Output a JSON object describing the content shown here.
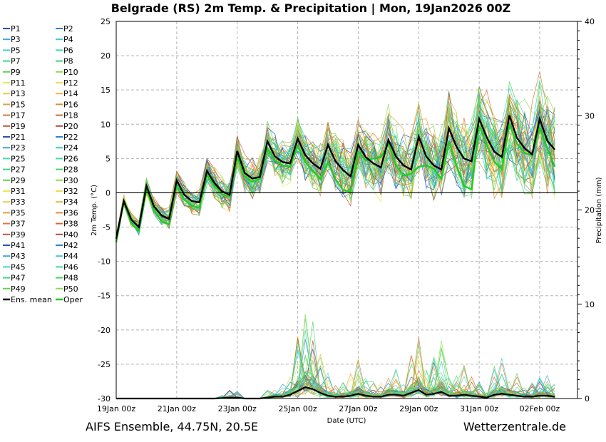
{
  "chart_data": {
    "type": "line",
    "title": "Belgrade  (RS)  2m Temp. & Precipitation | Mon, 19Jan2026 00Z",
    "xlabel": "Date (UTC)",
    "ylabel": "2m Temp. (°C)",
    "y2label": "Precipitation (mm)",
    "footer_left": "AIFS Ensemble, 44.75N, 20.5E",
    "footer_right": "Wetterzentrale.de",
    "ylim": [
      -30,
      25
    ],
    "y2lim": [
      0,
      40
    ],
    "yticks": [
      25,
      20,
      15,
      10,
      5,
      0,
      -5,
      -10,
      -15,
      -20,
      -25,
      -30
    ],
    "y2ticks": [
      40,
      30,
      20,
      10,
      0
    ],
    "x_hours_max": 366,
    "step_hours": 6,
    "xticks": [
      {
        "h": 0,
        "label": "19Jan 00z"
      },
      {
        "h": 48,
        "label": "21Jan 00z"
      },
      {
        "h": 96,
        "label": "23Jan 00z"
      },
      {
        "h": 144,
        "label": "25Jan 00z"
      },
      {
        "h": 192,
        "label": "27Jan 00z"
      },
      {
        "h": 240,
        "label": "29Jan 00z"
      },
      {
        "h": 288,
        "label": "31Jan 00z"
      },
      {
        "h": 336,
        "label": "02Feb 00z"
      }
    ],
    "ens_mean_temp": [
      -6.7,
      -1.2,
      -3.9,
      -5.0,
      1.0,
      -2.0,
      -3.3,
      -3.8,
      1.8,
      -0.3,
      -1.2,
      -1.4,
      3.2,
      1.4,
      0.2,
      -0.3,
      6.1,
      2.9,
      2.1,
      2.3,
      7.5,
      5.3,
      4.5,
      4.3,
      7.9,
      5.5,
      4.3,
      3.5,
      7.0,
      4.6,
      3.3,
      2.4,
      7.0,
      5.2,
      4.3,
      3.7,
      7.7,
      5.3,
      4.0,
      3.4,
      8.2,
      5.3,
      4.0,
      3.4,
      9.4,
      6.7,
      5.0,
      4.6,
      10.8,
      8.1,
      6.0,
      5.2,
      11.3,
      8.0,
      6.5,
      5.6,
      10.8,
      7.6,
      6.3
    ],
    "oper_temp": [
      -7.2,
      -1.3,
      -4.5,
      -5.6,
      0.5,
      -2.6,
      -4.2,
      -4.6,
      1.0,
      -1.0,
      -1.9,
      -2.2,
      2.6,
      1.0,
      -0.2,
      -0.6,
      5.2,
      2.4,
      1.6,
      2.0,
      6.5,
      4.7,
      4.0,
      3.8,
      6.8,
      4.5,
      3.2,
      2.0,
      4.5,
      2.0,
      0.4,
      0.2,
      6.0,
      4.7,
      5.0,
      5.2,
      7.2,
      4.0,
      2.5,
      2.8,
      3.8,
      4.0,
      3.5,
      2.0,
      7.5,
      4.0,
      1.0,
      0.5,
      9.8,
      7.0,
      4.5,
      3.5,
      10.0,
      7.2,
      5.8,
      5.5,
      9.5,
      6.5,
      3.8
    ],
    "ens_mean_precip": [
      0,
      0,
      0,
      0,
      0,
      0,
      0,
      0,
      0,
      0,
      0,
      0,
      0,
      0,
      0.05,
      0.1,
      0.1,
      0,
      0,
      0,
      0.1,
      0.2,
      0.2,
      0.4,
      0.8,
      1.2,
      1.0,
      0.6,
      0.3,
      0.2,
      0.2,
      0.3,
      0.5,
      0.3,
      0.2,
      0.2,
      0.4,
      0.4,
      0.3,
      0.6,
      0.9,
      0.4,
      0.5,
      0.7,
      0.3,
      0.3,
      0.4,
      0.3,
      0.2,
      0.1,
      0.4,
      0.5,
      0.4,
      0.3,
      0.2,
      0.2,
      0.3,
      0.3,
      0.2
    ],
    "members_count": 50,
    "legend": [
      "P1",
      "P2",
      "P3",
      "P4",
      "P5",
      "P6",
      "P7",
      "P8",
      "P9",
      "P10",
      "P11",
      "P12",
      "P13",
      "P14",
      "P15",
      "P16",
      "P17",
      "P18",
      "P19",
      "P20",
      "P21",
      "P22",
      "P23",
      "P24",
      "P25",
      "P26",
      "P27",
      "P28",
      "P29",
      "P30",
      "P31",
      "P32",
      "P33",
      "P34",
      "P35",
      "P36",
      "P37",
      "P38",
      "P39",
      "P40",
      "P41",
      "P42",
      "P43",
      "P44",
      "P45",
      "P46",
      "P47",
      "P48",
      "P49",
      "P50",
      "Ens. mean",
      "Oper"
    ],
    "legend_colors": [
      "#2850b4",
      "#2e7fd6",
      "#3aa8e0",
      "#3cc8d8",
      "#3fd8c0",
      "#3cdca0",
      "#40d880",
      "#45d660",
      "#5ad848",
      "#8ede4a",
      "#e6ea50",
      "#f0dc50",
      "#f0c850",
      "#eab448",
      "#e6a040",
      "#e08c3a",
      "#d87a38",
      "#cc6a36",
      "#c05a36",
      "#b44a3a",
      "#2850b4",
      "#2e7fd6",
      "#3aa8e0",
      "#3cc8d8",
      "#3fd8c0",
      "#3cdca0",
      "#40d880",
      "#45d660",
      "#5ad848",
      "#8ede4a",
      "#e6ea50",
      "#f0dc50",
      "#f0c850",
      "#eab448",
      "#e6a040",
      "#e08c3a",
      "#d87a38",
      "#cc6a36",
      "#c05a36",
      "#b44a3a",
      "#2850b4",
      "#2e7fd6",
      "#3aa8e0",
      "#3cc8d8",
      "#3fd8c0",
      "#3cdca0",
      "#40d880",
      "#45d660",
      "#5ad848",
      "#8ede4a",
      "#000000",
      "#22cc22"
    ]
  }
}
